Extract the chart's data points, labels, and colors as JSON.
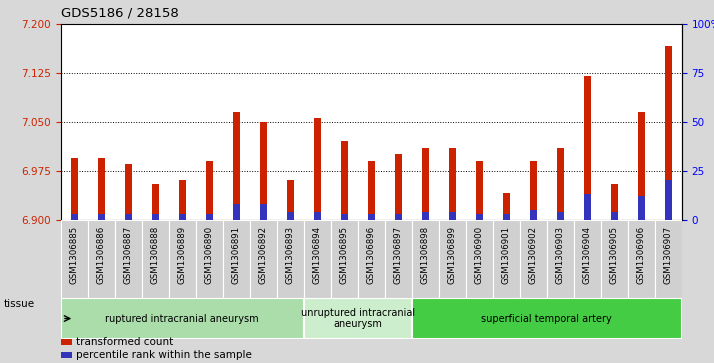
{
  "title": "GDS5186 / 28158",
  "samples": [
    "GSM1306885",
    "GSM1306886",
    "GSM1306887",
    "GSM1306888",
    "GSM1306889",
    "GSM1306890",
    "GSM1306891",
    "GSM1306892",
    "GSM1306893",
    "GSM1306894",
    "GSM1306895",
    "GSM1306896",
    "GSM1306897",
    "GSM1306898",
    "GSM1306899",
    "GSM1306900",
    "GSM1306901",
    "GSM1306902",
    "GSM1306903",
    "GSM1306904",
    "GSM1306905",
    "GSM1306906",
    "GSM1306907"
  ],
  "transformed_count": [
    6.995,
    6.995,
    6.985,
    6.955,
    6.96,
    6.99,
    7.065,
    7.05,
    6.96,
    7.055,
    7.02,
    6.99,
    7.0,
    7.01,
    7.01,
    6.99,
    6.94,
    6.99,
    7.01,
    7.12,
    6.955,
    7.065,
    7.165
  ],
  "percentile_rank": [
    3,
    3,
    3,
    3,
    3,
    3,
    8,
    8,
    4,
    4,
    3,
    3,
    3,
    4,
    4,
    3,
    3,
    5,
    4,
    13,
    4,
    12,
    20
  ],
  "ymin": 6.9,
  "ymax": 7.2,
  "yticks_left": [
    6.9,
    6.975,
    7.05,
    7.125,
    7.2
  ],
  "yticks_right": [
    0,
    25,
    50,
    75,
    100
  ],
  "bar_color": "#cc2200",
  "percentile_color": "#3333bb",
  "fig_bg": "#d8d8d8",
  "plot_bg": "#ffffff",
  "xticklabel_bg": "#d0d0d0",
  "groups": [
    {
      "label": "ruptured intracranial aneurysm",
      "start": 0,
      "end": 9,
      "color": "#aaddaa"
    },
    {
      "label": "unruptured intracranial\naneurysm",
      "start": 9,
      "end": 13,
      "color": "#cceecc"
    },
    {
      "label": "superficial temporal artery",
      "start": 13,
      "end": 23,
      "color": "#44cc44"
    }
  ],
  "tissue_label": "tissue",
  "bar_width": 0.25,
  "legend_labels": [
    "transformed count",
    "percentile rank within the sample"
  ],
  "legend_colors": [
    "#cc2200",
    "#3333bb"
  ]
}
